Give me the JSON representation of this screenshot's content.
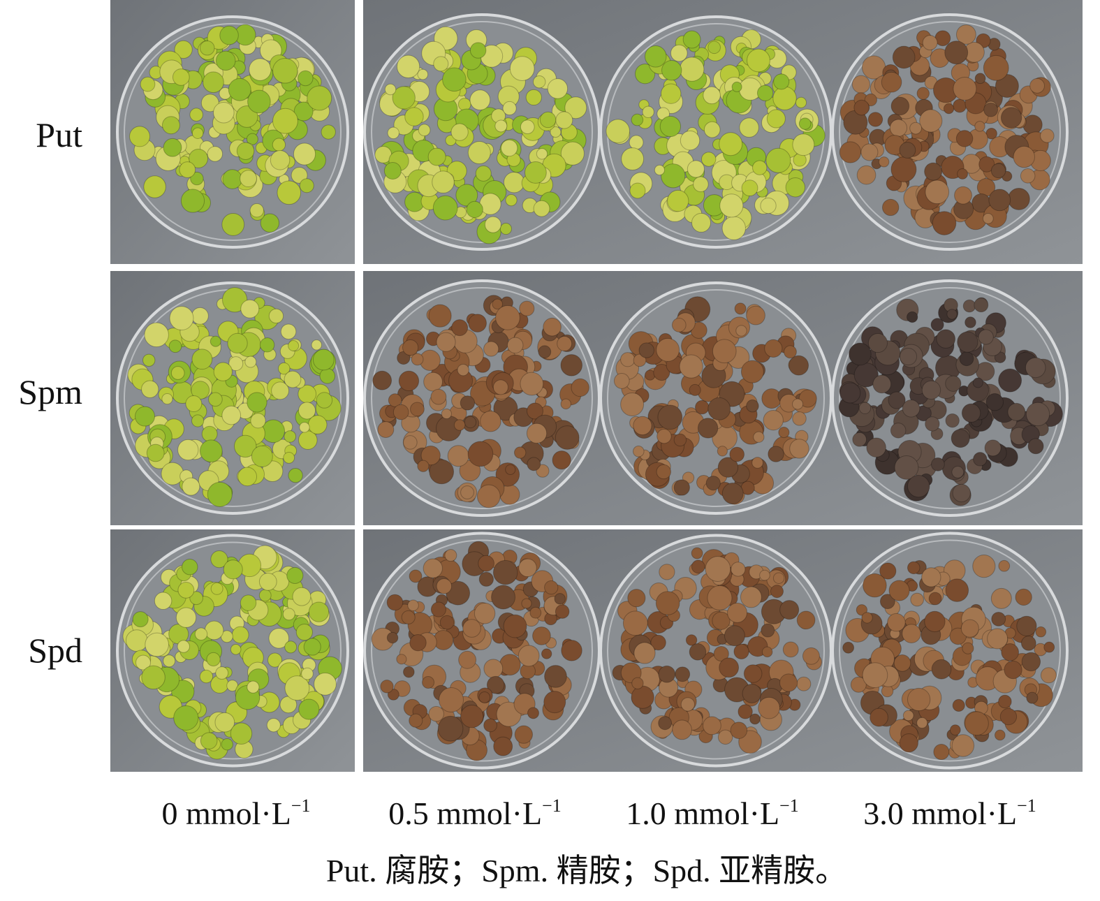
{
  "rows": [
    "Put",
    "Spm",
    "Spd"
  ],
  "columns": [
    {
      "text": "0 mmol·L",
      "sup": "−1"
    },
    {
      "text": "0.5 mmol·L",
      "sup": "−1"
    },
    {
      "text": "1.0 mmol·L",
      "sup": "−1"
    },
    {
      "text": "3.0 mmol·L",
      "sup": "−1"
    }
  ],
  "caption": "Put. 腐胺；Spm. 精胺；Spd. 亚精胺。"
}
